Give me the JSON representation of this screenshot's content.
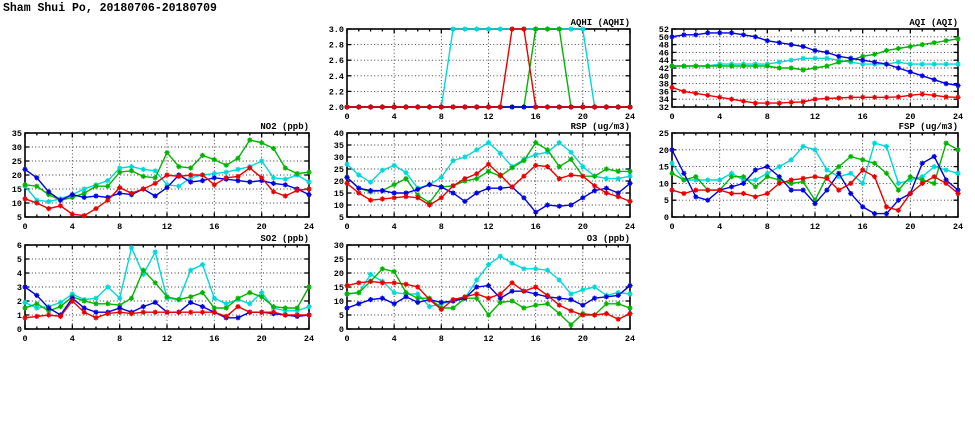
{
  "page": {
    "title": "Sham Shui Po, 20180706-20180709"
  },
  "palette": {
    "blue": "#0000e0",
    "cyan": "#00d8d8",
    "green": "#00b400",
    "red": "#e80000"
  },
  "chart_data": [
    {
      "id": "aqhi",
      "type": "line",
      "title": "AQHI (AQHI)",
      "xlabel": "",
      "ylabel": "",
      "xlim": [
        0,
        24
      ],
      "x_ticks": [
        0,
        4,
        8,
        12,
        16,
        20,
        24
      ],
      "ylim": [
        2,
        3
      ],
      "yticks": [
        2,
        2.2,
        2.4,
        2.6,
        2.8,
        3
      ],
      "ytick_labels": [
        "2.0",
        "2.2",
        "2.4",
        "2.6",
        "2.8",
        "3.0"
      ],
      "grid": true,
      "legend": "none",
      "series": [
        {
          "name": "cyan",
          "color": "#00d8d8",
          "values": [
            2,
            2,
            2,
            2,
            2,
            2,
            2,
            2,
            2,
            3,
            3,
            3,
            3,
            3,
            3,
            3,
            3,
            3,
            3,
            3,
            3,
            2,
            2,
            2,
            2
          ]
        },
        {
          "name": "green",
          "color": "#00b400",
          "values": [
            2,
            2,
            2,
            2,
            2,
            2,
            2,
            2,
            2,
            2,
            2,
            2,
            2,
            2,
            2,
            2,
            3,
            3,
            3,
            2,
            2,
            2,
            2,
            2,
            2
          ]
        },
        {
          "name": "blue",
          "color": "#0000e0",
          "values": [
            2,
            2,
            2,
            2,
            2,
            2,
            2,
            2,
            2,
            2,
            2,
            2,
            2,
            2,
            2,
            2,
            2,
            2,
            2,
            2,
            2,
            2,
            2,
            2,
            2
          ]
        },
        {
          "name": "red",
          "color": "#e80000",
          "values": [
            2,
            2,
            2,
            2,
            2,
            2,
            2,
            2,
            2,
            2,
            2,
            2,
            2,
            2,
            3,
            3,
            2,
            2,
            2,
            2,
            2,
            2,
            2,
            2,
            2
          ]
        }
      ]
    },
    {
      "id": "aqi",
      "type": "line",
      "title": "AQI (AQI)",
      "xlabel": "",
      "ylabel": "",
      "xlim": [
        0,
        24
      ],
      "x_ticks": [
        0,
        4,
        8,
        12,
        16,
        20,
        24
      ],
      "ylim": [
        32,
        52
      ],
      "yticks": [
        32,
        34,
        36,
        38,
        40,
        42,
        44,
        46,
        48,
        50,
        52
      ],
      "ytick_labels": [
        "32",
        "34",
        "36",
        "38",
        "40",
        "42",
        "44",
        "46",
        "48",
        "50",
        "52"
      ],
      "grid": true,
      "legend": "none",
      "series": [
        {
          "name": "cyan",
          "color": "#00d8d8",
          "values": [
            42.5,
            42.5,
            42.5,
            42.5,
            43,
            43,
            43,
            43,
            43,
            43.5,
            44,
            44.5,
            44.5,
            44.5,
            44,
            43.5,
            43,
            43,
            43,
            43.5,
            43,
            43,
            43,
            43,
            43
          ]
        },
        {
          "name": "green",
          "color": "#00b400",
          "values": [
            42.5,
            42.5,
            42.5,
            42.5,
            42.5,
            42.5,
            42.5,
            42.5,
            42.5,
            42,
            42,
            41.5,
            42,
            42.5,
            43.5,
            44,
            45,
            45.5,
            46.5,
            47,
            47.5,
            48,
            48.5,
            49,
            49.5
          ]
        },
        {
          "name": "blue",
          "color": "#0000e0",
          "values": [
            50,
            50.5,
            50.5,
            51,
            51,
            51,
            50.5,
            50,
            49,
            48.5,
            48,
            47.5,
            46.5,
            46,
            45,
            44.5,
            44,
            43.5,
            43,
            42,
            41,
            40,
            39,
            38,
            37.5
          ]
        },
        {
          "name": "red",
          "color": "#e80000",
          "values": [
            37,
            36,
            35.5,
            35,
            34.5,
            34,
            33.5,
            33,
            33,
            33,
            33.2,
            33.3,
            34,
            34.2,
            34.3,
            34.5,
            34.5,
            34.5,
            34.5,
            34.6,
            35,
            35.3,
            35,
            34.6,
            34.5
          ]
        }
      ]
    },
    {
      "id": "no2",
      "type": "line",
      "title": "NO2 (ppb)",
      "xlabel": "",
      "ylabel": "",
      "xlim": [
        0,
        24
      ],
      "x_ticks": [
        0,
        4,
        8,
        12,
        16,
        20,
        24
      ],
      "ylim": [
        5,
        35
      ],
      "yticks": [
        5,
        10,
        15,
        20,
        25,
        30,
        35
      ],
      "ytick_labels": [
        "5",
        "10",
        "15",
        "20",
        "25",
        "30",
        "35"
      ],
      "grid": true,
      "legend": "none",
      "series": [
        {
          "name": "cyan",
          "color": "#00d8d8",
          "values": [
            16,
            11,
            10.5,
            11.5,
            13,
            15,
            16.5,
            18,
            22.5,
            23,
            22,
            21.5,
            16.5,
            16,
            19,
            20,
            20.5,
            21,
            22,
            23,
            25,
            19,
            18.5,
            20,
            17.5
          ]
        },
        {
          "name": "green",
          "color": "#00b400",
          "values": [
            16.5,
            16,
            13,
            11,
            12,
            13.5,
            16,
            16,
            21,
            21.5,
            19.5,
            19,
            28,
            23,
            22.5,
            27,
            25.5,
            23.5,
            26,
            32.5,
            31.5,
            29.5,
            22.5,
            20.5,
            21
          ]
        },
        {
          "name": "blue",
          "color": "#0000e0",
          "values": [
            22,
            19,
            14,
            11,
            13,
            12,
            12.5,
            12,
            13.5,
            13,
            15,
            12.5,
            15.5,
            20,
            17.5,
            18,
            19,
            18.5,
            18,
            17.5,
            18,
            17,
            16.5,
            15,
            13
          ]
        },
        {
          "name": "red",
          "color": "#e80000",
          "values": [
            11.5,
            10,
            8,
            9,
            6,
            5.5,
            8,
            11,
            15.5,
            13.5,
            15,
            17,
            20,
            19.5,
            20,
            20,
            16.5,
            19,
            19.5,
            22.5,
            19,
            14,
            12.5,
            14.5,
            15
          ]
        }
      ]
    },
    {
      "id": "rsp",
      "type": "line",
      "title": "RSP (ug/m3)",
      "xlabel": "",
      "ylabel": "",
      "xlim": [
        0,
        24
      ],
      "x_ticks": [
        0,
        4,
        8,
        12,
        16,
        20,
        24
      ],
      "ylim": [
        5,
        40
      ],
      "yticks": [
        5,
        10,
        15,
        20,
        25,
        30,
        35,
        40
      ],
      "ytick_labels": [
        "5",
        "10",
        "15",
        "20",
        "25",
        "30",
        "35",
        "40"
      ],
      "grid": true,
      "legend": "none",
      "series": [
        {
          "name": "cyan",
          "color": "#00d8d8",
          "values": [
            27,
            22.5,
            19.5,
            24.5,
            26.5,
            23.5,
            17,
            18.5,
            21.5,
            28.5,
            30,
            33,
            36,
            31.5,
            26,
            29,
            31,
            32,
            36,
            32,
            26,
            22,
            21,
            21,
            22
          ]
        },
        {
          "name": "green",
          "color": "#00b400",
          "values": [
            21.5,
            17,
            15.5,
            16,
            18.5,
            21,
            14,
            11,
            17.5,
            18,
            20,
            21,
            24,
            22,
            25.5,
            28.5,
            36,
            33,
            26,
            29,
            22,
            22,
            25,
            24,
            24
          ]
        },
        {
          "name": "blue",
          "color": "#0000e0",
          "values": [
            21.5,
            17,
            16,
            16,
            15,
            15,
            16.5,
            18.5,
            17.5,
            15,
            11.5,
            15,
            17,
            17,
            17.5,
            13,
            7,
            10,
            9.5,
            10,
            13,
            16,
            17,
            15,
            19
          ]
        },
        {
          "name": "red",
          "color": "#e80000",
          "values": [
            19,
            15,
            12,
            12.5,
            13,
            13.5,
            13,
            10,
            13,
            18,
            21,
            23,
            27,
            22.5,
            17.5,
            22,
            26.5,
            26,
            21,
            22.5,
            22,
            18,
            15,
            13.5,
            11.5
          ]
        }
      ]
    },
    {
      "id": "fsp",
      "type": "line",
      "title": "FSP (ug/m3)",
      "xlabel": "",
      "ylabel": "",
      "xlim": [
        0,
        24
      ],
      "x_ticks": [
        0,
        4,
        8,
        12,
        16,
        20,
        24
      ],
      "ylim": [
        0,
        25
      ],
      "yticks": [
        0,
        5,
        10,
        15,
        20,
        25
      ],
      "ytick_labels": [
        "0",
        "5",
        "10",
        "15",
        "20",
        "25"
      ],
      "grid": true,
      "legend": "none",
      "series": [
        {
          "name": "cyan",
          "color": "#00d8d8",
          "values": [
            16,
            11,
            11,
            11,
            11,
            13,
            11,
            11,
            13,
            15,
            17,
            21,
            20,
            14,
            12,
            13,
            10,
            22,
            21,
            10,
            11,
            12,
            15,
            14,
            13
          ]
        },
        {
          "name": "green",
          "color": "#00b400",
          "values": [
            13,
            11,
            12,
            8,
            8,
            12,
            12,
            9,
            12,
            11,
            10,
            10.5,
            5,
            12,
            15,
            18,
            17,
            16,
            13,
            8,
            12,
            11,
            10,
            22,
            20
          ]
        },
        {
          "name": "blue",
          "color": "#0000e0",
          "values": [
            20,
            13,
            6,
            5,
            8,
            9,
            10,
            14,
            15,
            12,
            8,
            8,
            4,
            8,
            13,
            7,
            3,
            1,
            1,
            5,
            7,
            16,
            18,
            11,
            8
          ]
        },
        {
          "name": "red",
          "color": "#e80000",
          "values": [
            8,
            7,
            8,
            8,
            8,
            7,
            7,
            6,
            7,
            10,
            11,
            11.5,
            12,
            11.5,
            8,
            10,
            14,
            12,
            3,
            2,
            7,
            10,
            12,
            10,
            7
          ]
        }
      ]
    },
    {
      "id": "so2",
      "type": "line",
      "title": "SO2 (ppb)",
      "xlabel": "",
      "ylabel": "",
      "xlim": [
        0,
        24
      ],
      "x_ticks": [
        0,
        4,
        8,
        12,
        16,
        20,
        24
      ],
      "ylim": [
        0,
        6
      ],
      "yticks": [
        0,
        1,
        2,
        3,
        4,
        5,
        6
      ],
      "ytick_labels": [
        "0",
        "1",
        "2",
        "3",
        "4",
        "5",
        "6"
      ],
      "grid": true,
      "legend": "none",
      "series": [
        {
          "name": "cyan",
          "color": "#00d8d8",
          "values": [
            1.9,
            1.5,
            1.6,
            1.9,
            2.5,
            2.1,
            2.2,
            3,
            2.2,
            5.8,
            3.9,
            5.5,
            2.2,
            2.1,
            4.2,
            4.6,
            2.2,
            1.8,
            2.1,
            1.8,
            2.6,
            1.5,
            1.3,
            1.3,
            1.6
          ]
        },
        {
          "name": "green",
          "color": "#00b400",
          "values": [
            1.5,
            1.8,
            1.3,
            1.6,
            2.3,
            2,
            1.8,
            1.8,
            1.7,
            2.2,
            4.2,
            3.3,
            2.3,
            2.1,
            2.3,
            2.6,
            1.5,
            1.5,
            2.2,
            2.6,
            2.3,
            1.6,
            1.5,
            1.5,
            3
          ]
        },
        {
          "name": "blue",
          "color": "#0000e0",
          "values": [
            3,
            2.4,
            1.5,
            1,
            2.2,
            1.5,
            1.2,
            1.2,
            1.5,
            1.2,
            1.6,
            1.9,
            1.2,
            1.2,
            1.9,
            1.6,
            1.2,
            0.8,
            0.8,
            1.2,
            1.2,
            1.1,
            1,
            0.9,
            1
          ]
        },
        {
          "name": "red",
          "color": "#e80000",
          "values": [
            0.8,
            0.9,
            1,
            0.9,
            2,
            1.2,
            0.8,
            1.1,
            1.2,
            1.1,
            1.2,
            1.2,
            1.2,
            1.2,
            1.2,
            1.2,
            1.2,
            0.9,
            1.6,
            1.2,
            1.2,
            1.2,
            1,
            1,
            1
          ]
        }
      ]
    },
    {
      "id": "o3",
      "type": "line",
      "title": "O3 (ppb)",
      "xlabel": "",
      "ylabel": "",
      "xlim": [
        0,
        24
      ],
      "x_ticks": [
        0,
        4,
        8,
        12,
        16,
        20,
        24
      ],
      "ylim": [
        0,
        30
      ],
      "yticks": [
        0,
        5,
        10,
        15,
        20,
        25,
        30
      ],
      "ytick_labels": [
        "0",
        "5",
        "10",
        "15",
        "20",
        "25",
        "30"
      ],
      "grid": true,
      "legend": "none",
      "series": [
        {
          "name": "cyan",
          "color": "#00d8d8",
          "values": [
            12.5,
            13,
            19.5,
            17,
            13,
            12.5,
            12.5,
            8,
            9,
            10,
            11,
            17.5,
            23,
            26,
            23.5,
            21.5,
            21.5,
            21,
            17.5,
            12.5,
            14,
            15,
            12,
            13,
            12.5
          ]
        },
        {
          "name": "green",
          "color": "#00b400",
          "values": [
            12.5,
            13,
            17,
            21.5,
            20.5,
            13,
            11,
            11,
            7.5,
            7.5,
            11,
            11,
            5,
            9.5,
            10,
            7.5,
            8.5,
            9,
            5.5,
            1.5,
            5.5,
            5,
            9,
            9,
            7.5
          ]
        },
        {
          "name": "blue",
          "color": "#0000e0",
          "values": [
            7.5,
            9,
            10.5,
            11,
            9,
            11.5,
            9.5,
            10.5,
            9.5,
            10,
            11,
            15,
            15.5,
            11,
            13.5,
            13.5,
            12.5,
            11.5,
            11,
            10.5,
            8.5,
            11,
            11.5,
            12,
            15.5
          ]
        },
        {
          "name": "red",
          "color": "#e80000",
          "values": [
            15.5,
            16.5,
            17,
            16.5,
            16.5,
            16,
            15,
            10.5,
            7,
            10.5,
            11.5,
            12.5,
            11,
            12.5,
            16.5,
            13.5,
            15,
            12,
            8.5,
            6.5,
            5,
            5,
            5.5,
            3.5,
            5.5
          ]
        }
      ]
    }
  ]
}
